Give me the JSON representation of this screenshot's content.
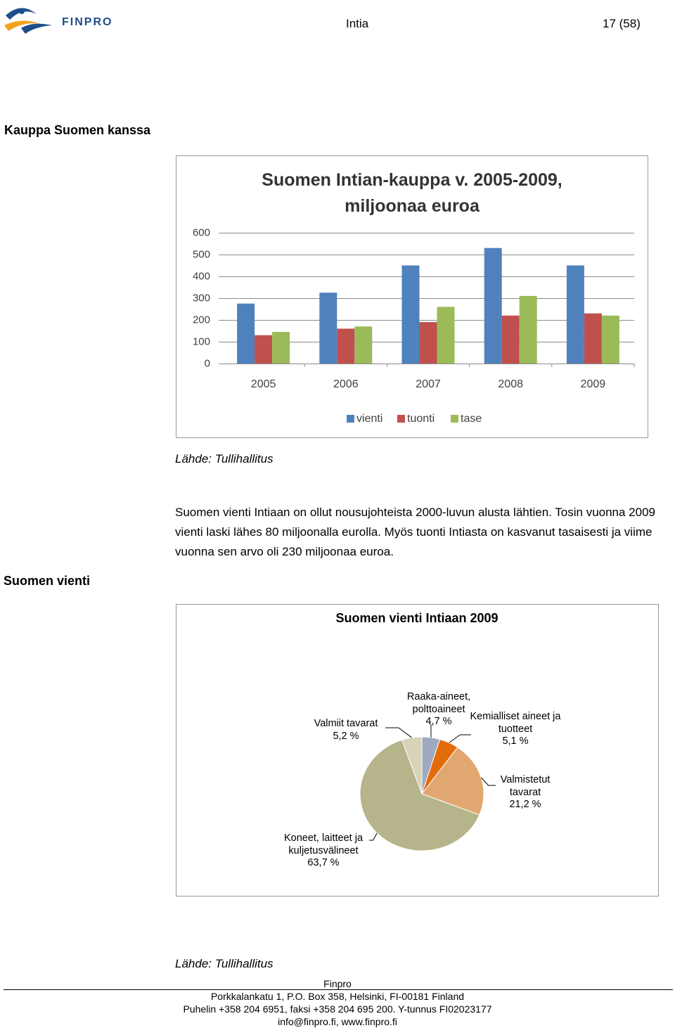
{
  "header": {
    "logo": "FINPRO",
    "title": "Intia",
    "page": "17 (58)"
  },
  "section_title": "Kauppa Suomen kanssa",
  "source_1": "Lähde: Tullihallitus",
  "paragraph": "Suomen vienti Intiaan on ollut nousujohteista 2000-luvun alusta lähtien. Tosin vuonna 2009 vienti laski lähes 80 miljoonalla eurolla. Myös tuonti Intiasta on kasvanut tasai­sesti ja viime vuonna sen arvo oli 230 miljoonaa euroa.",
  "side_heading": "Suomen vienti",
  "source_2": "Lähde: Tullihallitus",
  "footer": {
    "name": "Finpro",
    "lines": [
      "Porkkalankatu 1, P.O. Box 358, Helsinki, FI-00181 Finland",
      "Puhelin +358 204 6951, faksi +358 204 695 200. Y-tunnus FI02023177",
      "info@finpro.fi, www.finpro.fi"
    ]
  },
  "chart_data": [
    {
      "type": "bar",
      "title": "Suomen Intian-kauppa v. 2005-2009, miljoonaa euroa",
      "categories": [
        "2005",
        "2006",
        "2007",
        "2008",
        "2009"
      ],
      "series": [
        {
          "name": "vienti",
          "color": "#4f81bd",
          "values": [
            275,
            325,
            450,
            530,
            450
          ]
        },
        {
          "name": "tuonti",
          "color": "#c0504d",
          "values": [
            130,
            160,
            190,
            220,
            230
          ]
        },
        {
          "name": "tase",
          "color": "#9bbb59",
          "values": [
            145,
            170,
            260,
            310,
            220
          ]
        }
      ],
      "ylim": [
        0,
        600
      ],
      "yticks": [
        0,
        100,
        200,
        300,
        400,
        500,
        600
      ],
      "grid": true,
      "legend": "bottom"
    },
    {
      "type": "pie",
      "title": "Suomen vienti Intiaan 2009",
      "categories": [
        "Raaka-aineet, polttoaineet",
        "Kemialliset aineet ja tuotteet",
        "Valmistetut tavarat",
        "Koneet, laitteet ja kuljetusvälineet",
        "Valmiit tavarat"
      ],
      "values": [
        4.7,
        5.1,
        21.2,
        63.7,
        5.2
      ],
      "value_labels": [
        "4,7 %",
        "5,1 %",
        "21,2 %",
        "63,7 %",
        "5,2 %"
      ],
      "colors": [
        "#9eaabf",
        "#e36c0a",
        "#e0a870",
        "#b5b48a",
        "#d7d3b8"
      ]
    }
  ]
}
